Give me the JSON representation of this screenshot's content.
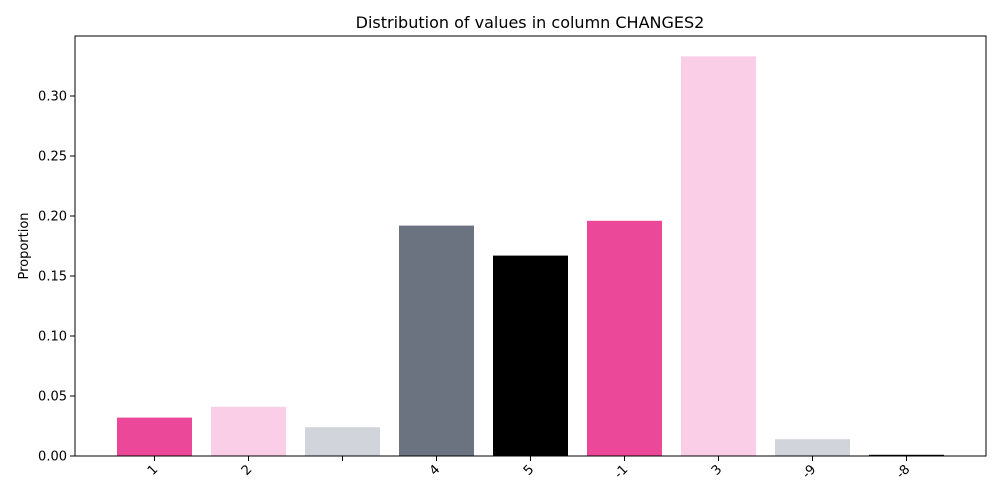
{
  "chart_data": {
    "type": "bar",
    "title": "Distribution of values in column CHANGES2",
    "xlabel": "",
    "ylabel": "Proportion",
    "categories": [
      "1",
      "2",
      "",
      "4",
      "5",
      "-1",
      "3",
      "-9",
      "-8"
    ],
    "values": [
      0.032,
      0.041,
      0.024,
      0.192,
      0.167,
      0.196,
      0.333,
      0.014,
      0.001
    ],
    "colors": [
      "#ec4899",
      "#f9cee6",
      "#d1d5db",
      "#6b7280",
      "#000000",
      "#ec4899",
      "#f9cee6",
      "#d1d5db",
      "#000000"
    ],
    "ylim": [
      0,
      0.35
    ],
    "yticks": [
      0.0,
      0.05,
      0.1,
      0.15,
      0.2,
      0.25,
      0.3
    ],
    "ytick_labels": [
      "0.00",
      "0.05",
      "0.10",
      "0.15",
      "0.20",
      "0.25",
      "0.30"
    ],
    "grid": false,
    "legend": "none"
  }
}
